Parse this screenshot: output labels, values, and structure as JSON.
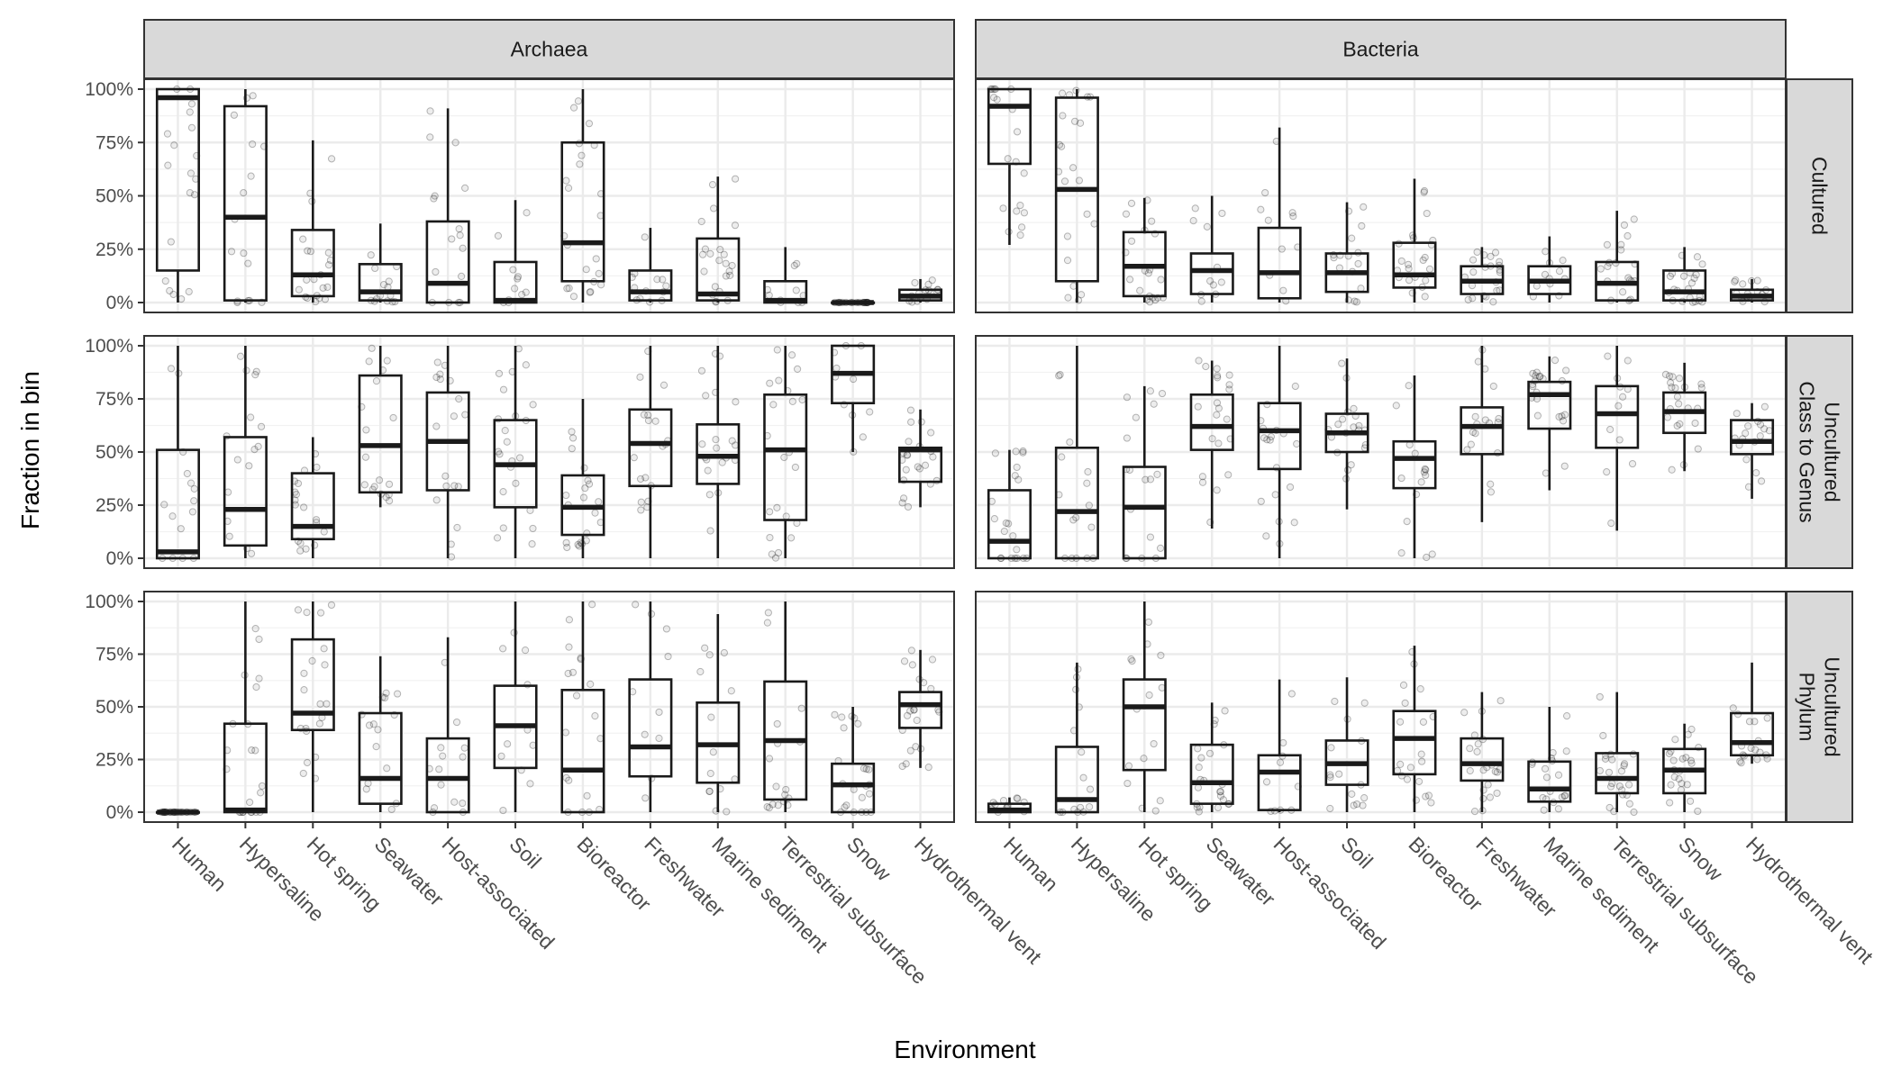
{
  "chart_data": {
    "type": "boxplot",
    "title": "",
    "xlabel": "Environment",
    "ylabel": "Fraction in bin",
    "ylim": [
      0,
      100
    ],
    "y_ticks": [
      "0%",
      "25%",
      "50%",
      "75%",
      "100%"
    ],
    "grid": true,
    "columns": [
      "Archaea",
      "Bacteria"
    ],
    "rows": [
      "Cultured",
      "Uncultured\nClass to Genus",
      "Uncultured\nPhylum"
    ],
    "categories": [
      "Human",
      "Hypersaline",
      "Hot spring",
      "Seawater",
      "Host-associated",
      "Soil",
      "Bioreactor",
      "Freshwater",
      "Marine sediment",
      "Terrestrial subsurface",
      "Snow",
      "Hydrothermal vent"
    ],
    "boxes": {
      "Archaea": [
        [
          {
            "q1": 15,
            "median": 96,
            "q3": 100,
            "lo": 0,
            "hi": 100
          },
          {
            "q1": 1,
            "median": 40,
            "q3": 92,
            "lo": 0,
            "hi": 100
          },
          {
            "q1": 3,
            "median": 13,
            "q3": 34,
            "lo": 0,
            "hi": 76
          },
          {
            "q1": 1,
            "median": 5,
            "q3": 18,
            "lo": 0,
            "hi": 37
          },
          {
            "q1": 0,
            "median": 9,
            "q3": 38,
            "lo": 0,
            "hi": 91
          },
          {
            "q1": 0,
            "median": 1,
            "q3": 19,
            "lo": 0,
            "hi": 48
          },
          {
            "q1": 10,
            "median": 28,
            "q3": 75,
            "lo": 0,
            "hi": 100
          },
          {
            "q1": 1,
            "median": 5,
            "q3": 15,
            "lo": 0,
            "hi": 35
          },
          {
            "q1": 1,
            "median": 4,
            "q3": 30,
            "lo": 0,
            "hi": 59
          },
          {
            "q1": 0,
            "median": 1,
            "q3": 10,
            "lo": 0,
            "hi": 26
          },
          {
            "q1": 0,
            "median": 0,
            "q3": 0,
            "lo": 0,
            "hi": 0
          },
          {
            "q1": 1,
            "median": 3,
            "q3": 6,
            "lo": 0,
            "hi": 11
          }
        ],
        [
          {
            "q1": 0,
            "median": 3,
            "q3": 51,
            "lo": 0,
            "hi": 100
          },
          {
            "q1": 6,
            "median": 23,
            "q3": 57,
            "lo": 0,
            "hi": 100
          },
          {
            "q1": 9,
            "median": 15,
            "q3": 40,
            "lo": 0,
            "hi": 57
          },
          {
            "q1": 31,
            "median": 53,
            "q3": 86,
            "lo": 24,
            "hi": 100
          },
          {
            "q1": 32,
            "median": 55,
            "q3": 78,
            "lo": 0,
            "hi": 100
          },
          {
            "q1": 24,
            "median": 44,
            "q3": 65,
            "lo": 0,
            "hi": 100
          },
          {
            "q1": 11,
            "median": 24,
            "q3": 39,
            "lo": 0,
            "hi": 75
          },
          {
            "q1": 34,
            "median": 54,
            "q3": 70,
            "lo": 0,
            "hi": 100
          },
          {
            "q1": 35,
            "median": 48,
            "q3": 63,
            "lo": 0,
            "hi": 100
          },
          {
            "q1": 18,
            "median": 51,
            "q3": 77,
            "lo": 0,
            "hi": 100
          },
          {
            "q1": 73,
            "median": 87,
            "q3": 100,
            "lo": 50,
            "hi": 100
          },
          {
            "q1": 36,
            "median": 51,
            "q3": 52,
            "lo": 24,
            "hi": 70
          }
        ],
        [
          {
            "q1": 0,
            "median": 0,
            "q3": 0,
            "lo": 0,
            "hi": 0
          },
          {
            "q1": 0,
            "median": 1,
            "q3": 42,
            "lo": 0,
            "hi": 100
          },
          {
            "q1": 39,
            "median": 47,
            "q3": 82,
            "lo": 0,
            "hi": 100
          },
          {
            "q1": 4,
            "median": 16,
            "q3": 47,
            "lo": 0,
            "hi": 74
          },
          {
            "q1": 0,
            "median": 16,
            "q3": 35,
            "lo": 0,
            "hi": 83
          },
          {
            "q1": 21,
            "median": 41,
            "q3": 60,
            "lo": 0,
            "hi": 100
          },
          {
            "q1": 0,
            "median": 20,
            "q3": 58,
            "lo": 0,
            "hi": 100
          },
          {
            "q1": 17,
            "median": 31,
            "q3": 63,
            "lo": 0,
            "hi": 100
          },
          {
            "q1": 14,
            "median": 32,
            "q3": 52,
            "lo": 0,
            "hi": 94
          },
          {
            "q1": 6,
            "median": 34,
            "q3": 62,
            "lo": 0,
            "hi": 100
          },
          {
            "q1": 0,
            "median": 13,
            "q3": 23,
            "lo": 0,
            "hi": 50
          },
          {
            "q1": 40,
            "median": 51,
            "q3": 57,
            "lo": 21,
            "hi": 77
          }
        ]
      ],
      "Bacteria": [
        [
          {
            "q1": 65,
            "median": 92,
            "q3": 100,
            "lo": 27,
            "hi": 100
          },
          {
            "q1": 10,
            "median": 53,
            "q3": 96,
            "lo": 0,
            "hi": 100
          },
          {
            "q1": 3,
            "median": 17,
            "q3": 33,
            "lo": 0,
            "hi": 49
          },
          {
            "q1": 4,
            "median": 15,
            "q3": 23,
            "lo": 0,
            "hi": 50
          },
          {
            "q1": 2,
            "median": 14,
            "q3": 35,
            "lo": 0,
            "hi": 82
          },
          {
            "q1": 5,
            "median": 14,
            "q3": 23,
            "lo": 0,
            "hi": 47
          },
          {
            "q1": 7,
            "median": 13,
            "q3": 28,
            "lo": 0,
            "hi": 58
          },
          {
            "q1": 4,
            "median": 10,
            "q3": 17,
            "lo": 0,
            "hi": 26
          },
          {
            "q1": 4,
            "median": 10,
            "q3": 17,
            "lo": 0,
            "hi": 31
          },
          {
            "q1": 1,
            "median": 9,
            "q3": 19,
            "lo": 0,
            "hi": 43
          },
          {
            "q1": 1,
            "median": 5,
            "q3": 15,
            "lo": 0,
            "hi": 26
          },
          {
            "q1": 1,
            "median": 3,
            "q3": 6,
            "lo": 0,
            "hi": 11
          }
        ],
        [
          {
            "q1": 0,
            "median": 8,
            "q3": 32,
            "lo": 0,
            "hi": 51
          },
          {
            "q1": 0,
            "median": 22,
            "q3": 52,
            "lo": 0,
            "hi": 100
          },
          {
            "q1": 0,
            "median": 24,
            "q3": 43,
            "lo": 0,
            "hi": 81
          },
          {
            "q1": 51,
            "median": 62,
            "q3": 77,
            "lo": 14,
            "hi": 93
          },
          {
            "q1": 42,
            "median": 60,
            "q3": 73,
            "lo": 0,
            "hi": 100
          },
          {
            "q1": 50,
            "median": 59,
            "q3": 68,
            "lo": 23,
            "hi": 94
          },
          {
            "q1": 33,
            "median": 47,
            "q3": 55,
            "lo": 0,
            "hi": 86
          },
          {
            "q1": 49,
            "median": 62,
            "q3": 71,
            "lo": 17,
            "hi": 100
          },
          {
            "q1": 61,
            "median": 77,
            "q3": 83,
            "lo": 32,
            "hi": 95
          },
          {
            "q1": 52,
            "median": 68,
            "q3": 81,
            "lo": 13,
            "hi": 100
          },
          {
            "q1": 59,
            "median": 69,
            "q3": 78,
            "lo": 41,
            "hi": 92
          },
          {
            "q1": 49,
            "median": 55,
            "q3": 65,
            "lo": 28,
            "hi": 73
          }
        ],
        [
          {
            "q1": 0,
            "median": 1,
            "q3": 4,
            "lo": 0,
            "hi": 7
          },
          {
            "q1": 0,
            "median": 6,
            "q3": 31,
            "lo": 0,
            "hi": 71
          },
          {
            "q1": 20,
            "median": 50,
            "q3": 63,
            "lo": 0,
            "hi": 100
          },
          {
            "q1": 4,
            "median": 14,
            "q3": 32,
            "lo": 0,
            "hi": 52
          },
          {
            "q1": 1,
            "median": 19,
            "q3": 27,
            "lo": 0,
            "hi": 63
          },
          {
            "q1": 13,
            "median": 23,
            "q3": 34,
            "lo": 0,
            "hi": 64
          },
          {
            "q1": 18,
            "median": 35,
            "q3": 48,
            "lo": 0,
            "hi": 79
          },
          {
            "q1": 15,
            "median": 23,
            "q3": 35,
            "lo": 0,
            "hi": 57
          },
          {
            "q1": 5,
            "median": 11,
            "q3": 24,
            "lo": 0,
            "hi": 50
          },
          {
            "q1": 9,
            "median": 16,
            "q3": 28,
            "lo": 0,
            "hi": 57
          },
          {
            "q1": 9,
            "median": 20,
            "q3": 30,
            "lo": 0,
            "hi": 42
          },
          {
            "q1": 27,
            "median": 33,
            "q3": 47,
            "lo": 23,
            "hi": 71
          }
        ]
      ]
    },
    "point_color": "#000000",
    "box_color": "#1a1a1a",
    "strip_color": "#d9d9d9",
    "grid_color": "#ebebeb"
  }
}
